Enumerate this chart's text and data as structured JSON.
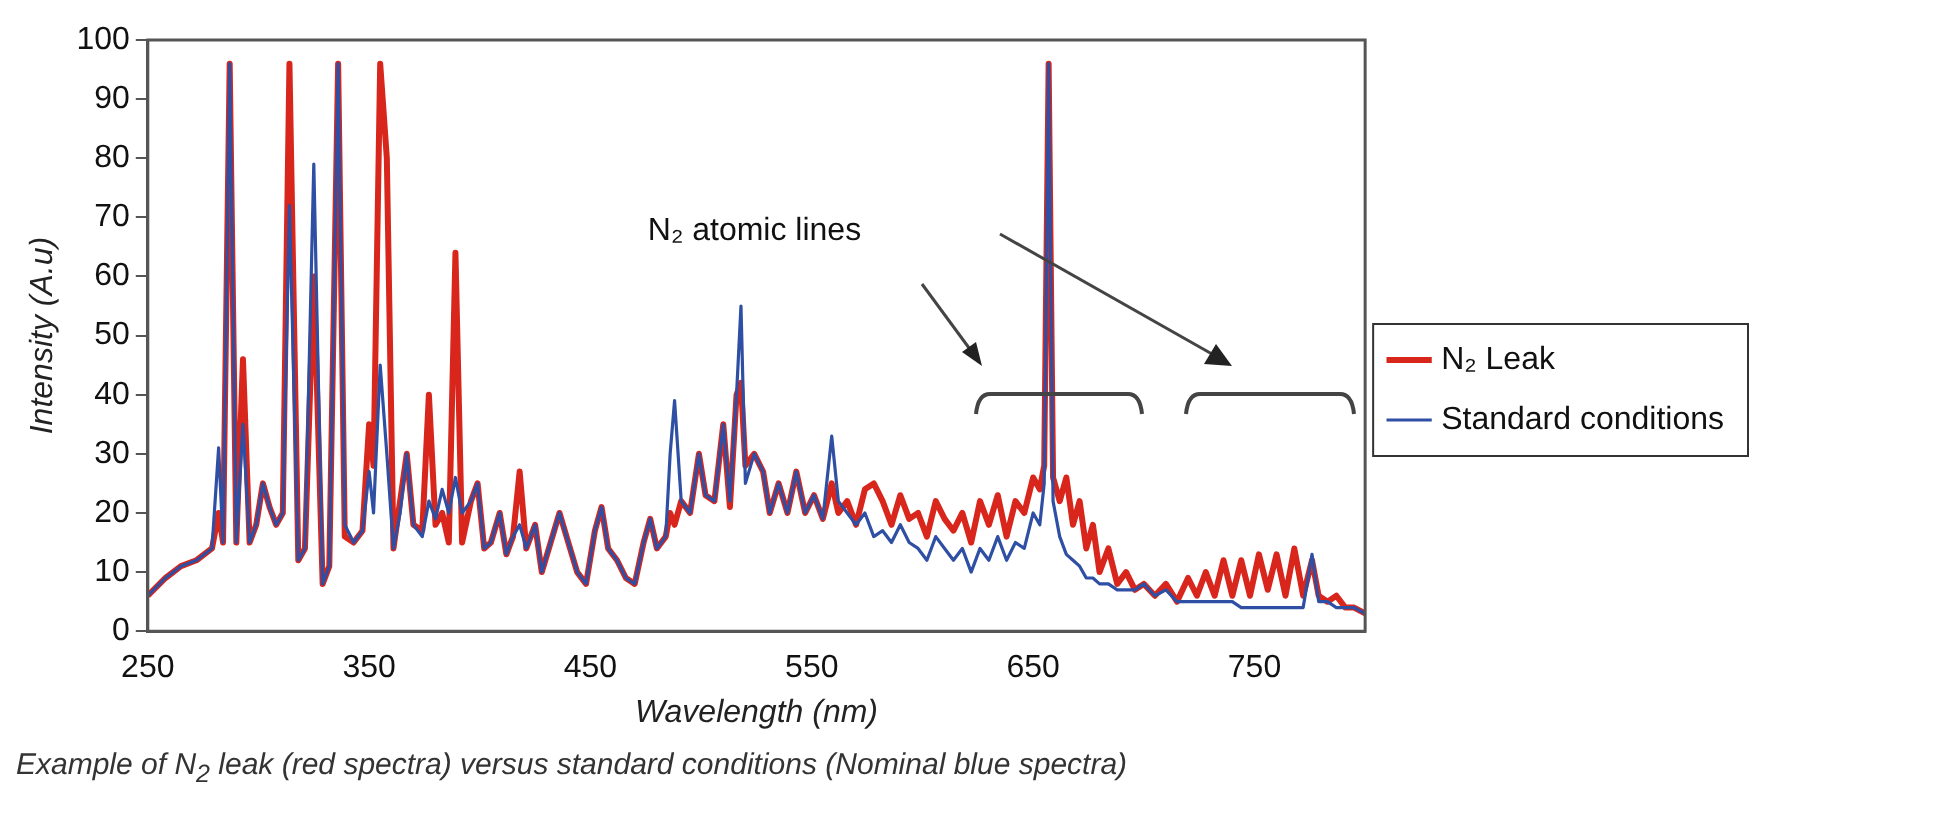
{
  "chart_data": {
    "type": "line",
    "xlabel": "Wavelength (nm)",
    "ylabel": "Intensity (A.u)",
    "xlim": [
      250,
      800
    ],
    "xticks": [
      250,
      350,
      450,
      550,
      650,
      750
    ],
    "ylim": [
      0,
      100
    ],
    "yticks": [
      0,
      10,
      20,
      30,
      40,
      50,
      60,
      70,
      80,
      90,
      100
    ],
    "grid": false,
    "legend": "right",
    "marker": "none",
    "line_style": "solid",
    "annotations": [
      "N₂ atomic lines",
      "Example of N$_{2}$ leak (red spectra) versus standard conditions (Nominal blue spectra)"
    ],
    "x": [
      250,
      258,
      265,
      272,
      279,
      282,
      284,
      287,
      290,
      293,
      296,
      299,
      302,
      305,
      308,
      311,
      314,
      318,
      321,
      325,
      329,
      332,
      336,
      339,
      343,
      347,
      350,
      352,
      355,
      358,
      361,
      364,
      367,
      370,
      374,
      377,
      380,
      383,
      386,
      389,
      392,
      396,
      399,
      402,
      405,
      409,
      412,
      415,
      418,
      421,
      425,
      428,
      432,
      436,
      440,
      444,
      448,
      452,
      455,
      458,
      462,
      466,
      470,
      474,
      477,
      480,
      484,
      486,
      488,
      491,
      495,
      499,
      502,
      506,
      510,
      513,
      516,
      518,
      520,
      524,
      528,
      531,
      535,
      539,
      543,
      547,
      551,
      555,
      559,
      562,
      566,
      570,
      574,
      578,
      582,
      586,
      590,
      594,
      598,
      602,
      606,
      610,
      614,
      618,
      622,
      626,
      630,
      634,
      638,
      642,
      646,
      650,
      653,
      655,
      657,
      659,
      662,
      665,
      668,
      671,
      674,
      677,
      680,
      684,
      688,
      692,
      696,
      700,
      705,
      710,
      715,
      720,
      724,
      728,
      732,
      736,
      740,
      744,
      748,
      752,
      756,
      760,
      764,
      768,
      772,
      776,
      779,
      783,
      787,
      791,
      795,
      800
    ],
    "series": [
      {
        "name": "N₂ Leak",
        "type": "line",
        "color": "#d9261c",
        "values": [
          6,
          9,
          11,
          12,
          14,
          20,
          15,
          96,
          15,
          46,
          15,
          18,
          25,
          21,
          18,
          20,
          96,
          12,
          14,
          60,
          8,
          11,
          96,
          16,
          15,
          17,
          35,
          28,
          96,
          80,
          14,
          22,
          30,
          18,
          17,
          40,
          18,
          20,
          15,
          64,
          15,
          22,
          25,
          14,
          15,
          20,
          13,
          16,
          27,
          14,
          18,
          10,
          15,
          20,
          15,
          10,
          8,
          17,
          21,
          14,
          12,
          9,
          8,
          15,
          19,
          14,
          16,
          20,
          18,
          22,
          20,
          30,
          23,
          22,
          35,
          21,
          40,
          42,
          28,
          30,
          27,
          20,
          25,
          20,
          27,
          20,
          23,
          19,
          25,
          20,
          22,
          18,
          24,
          25,
          22,
          18,
          23,
          19,
          20,
          16,
          22,
          19,
          17,
          20,
          15,
          22,
          18,
          23,
          16,
          22,
          20,
          26,
          24,
          28,
          96,
          26,
          22,
          26,
          18,
          22,
          14,
          18,
          10,
          14,
          8,
          10,
          7,
          8,
          6,
          8,
          5,
          9,
          6,
          10,
          6,
          12,
          6,
          12,
          6,
          13,
          7,
          13,
          6,
          14,
          6,
          12,
          6,
          5,
          6,
          4,
          4,
          3
        ]
      },
      {
        "name": "Standard conditions",
        "type": "line",
        "color": "#2e4fa3",
        "values": [
          6,
          9,
          11,
          12,
          14,
          31,
          15,
          96,
          15,
          35,
          15,
          18,
          25,
          21,
          18,
          20,
          72,
          12,
          14,
          79,
          8,
          11,
          96,
          18,
          15,
          17,
          27,
          20,
          45,
          30,
          14,
          20,
          30,
          18,
          16,
          22,
          19,
          24,
          20,
          26,
          20,
          22,
          25,
          14,
          15,
          20,
          13,
          16,
          18,
          14,
          18,
          10,
          15,
          20,
          15,
          10,
          8,
          17,
          21,
          14,
          12,
          9,
          8,
          15,
          19,
          14,
          16,
          30,
          39,
          22,
          20,
          30,
          23,
          22,
          35,
          22,
          40,
          55,
          25,
          30,
          27,
          20,
          25,
          20,
          27,
          20,
          23,
          19,
          33,
          22,
          20,
          18,
          20,
          16,
          17,
          15,
          18,
          15,
          14,
          12,
          16,
          14,
          12,
          14,
          10,
          14,
          12,
          16,
          12,
          15,
          14,
          20,
          18,
          25,
          96,
          22,
          16,
          13,
          12,
          11,
          9,
          9,
          8,
          8,
          7,
          7,
          7,
          8,
          6,
          7,
          5,
          5,
          5,
          5,
          5,
          5,
          5,
          4,
          4,
          4,
          4,
          4,
          4,
          4,
          4,
          13,
          5,
          5,
          4,
          4,
          4,
          3
        ]
      }
    ]
  }
}
